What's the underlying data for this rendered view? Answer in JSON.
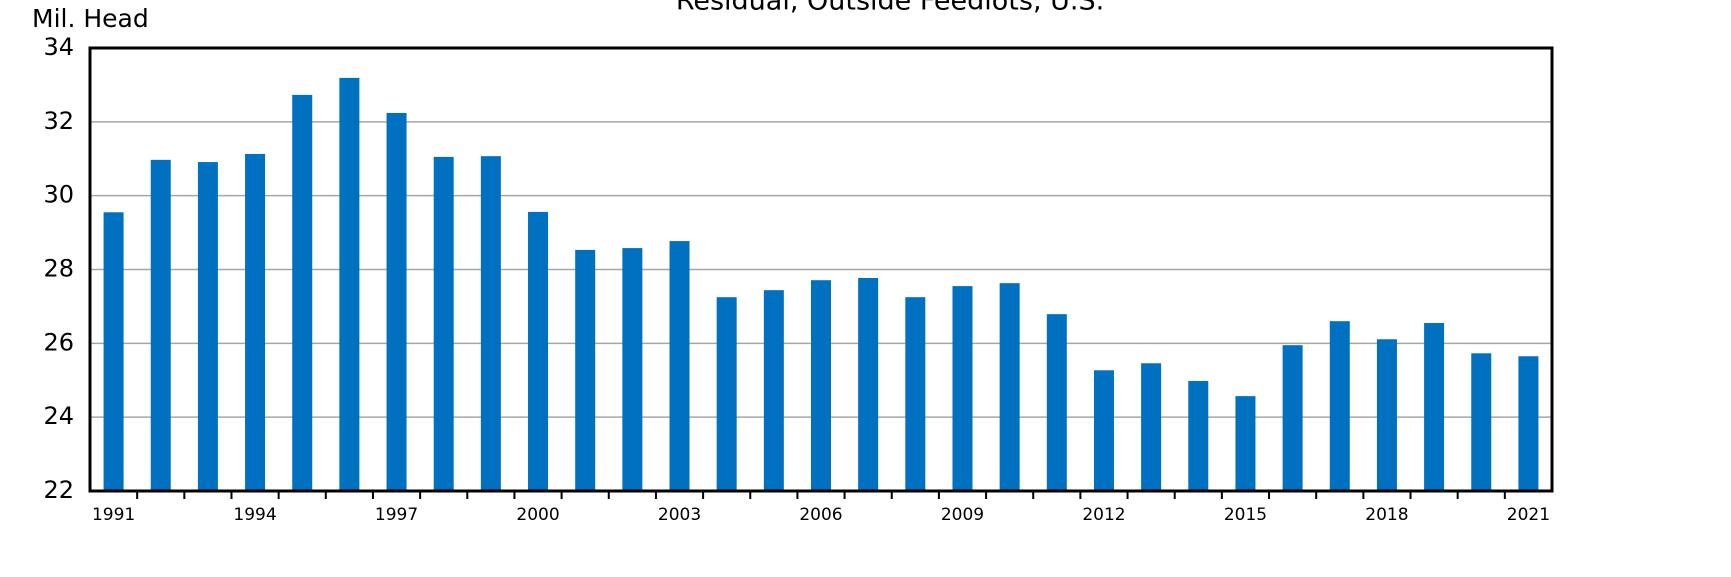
{
  "chart_data": {
    "type": "bar",
    "title": "Residual, Outside Feedlots, U.S.",
    "y_label": "Mil. Head",
    "categories": [
      "1991",
      null,
      null,
      "1994",
      null,
      null,
      "1997",
      null,
      null,
      "2000",
      null,
      null,
      "2003",
      null,
      null,
      "2006",
      null,
      null,
      "2009",
      null,
      null,
      "2012",
      null,
      null,
      "2015",
      null,
      null,
      "2018",
      null,
      null,
      "2021"
    ],
    "values": [
      29.55,
      30.97,
      30.91,
      31.13,
      32.73,
      33.19,
      32.24,
      31.05,
      31.07,
      29.56,
      28.53,
      28.58,
      28.77,
      27.25,
      27.44,
      27.71,
      27.77,
      27.25,
      27.55,
      27.63,
      26.79,
      25.27,
      25.46,
      24.98,
      24.57,
      25.95,
      26.6,
      26.11,
      26.55,
      25.73,
      25.65
    ],
    "color": "#0070c0",
    "ylim": [
      22,
      34
    ],
    "yticks": [
      22,
      24,
      26,
      28,
      30,
      32,
      34
    ],
    "grid": true
  }
}
